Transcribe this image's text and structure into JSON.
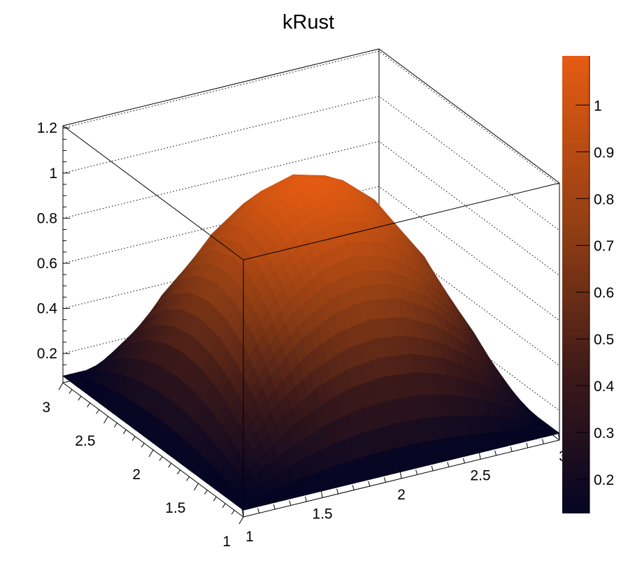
{
  "chart_data": {
    "type": "surface",
    "title": "kRust",
    "palette": "kRust",
    "palette_colors": [
      "#050523",
      "#3c1919",
      "#8c3c14",
      "#e65c12"
    ],
    "x_range": [
      1,
      3
    ],
    "y_range": [
      1,
      3
    ],
    "zlim": [
      0.07,
      1.21
    ],
    "color_range": [
      0.127,
      1.105
    ],
    "x_ticks": [
      "1",
      "1.5",
      "2",
      "2.5",
      "3"
    ],
    "y_ticks": [
      "1",
      "1.5",
      "2",
      "2.5",
      "3"
    ],
    "z_ticks": [
      "0.2",
      "0.4",
      "0.6",
      "0.8",
      "1",
      "1.2"
    ],
    "colorbar_ticks": [
      "0.2",
      "0.3",
      "0.4",
      "0.5",
      "0.6",
      "0.7",
      "0.8",
      "0.9",
      "1"
    ],
    "grid": "dotted on back walls",
    "colorbar_position": "right",
    "grid_x": [
      1,
      1.2,
      1.4,
      1.6,
      1.8,
      2,
      2.2,
      2.4,
      2.6,
      2.8,
      3
    ],
    "grid_y": [
      1,
      1.2,
      1.4,
      1.6,
      1.8,
      2,
      2.2,
      2.4,
      2.6,
      2.8,
      3
    ],
    "z_values": [
      [
        0.1,
        0.1,
        0.1,
        0.1,
        0.1,
        0.1,
        0.1,
        0.1,
        0.1,
        0.1,
        0.1
      ],
      [
        0.1,
        0.23,
        0.33,
        0.402,
        0.446,
        0.46,
        0.446,
        0.402,
        0.33,
        0.23,
        0.1
      ],
      [
        0.1,
        0.33,
        0.51,
        0.638,
        0.714,
        0.74,
        0.714,
        0.638,
        0.51,
        0.33,
        0.1
      ],
      [
        0.1,
        0.402,
        0.638,
        0.806,
        0.906,
        0.94,
        0.906,
        0.806,
        0.638,
        0.402,
        0.1
      ],
      [
        0.1,
        0.446,
        0.714,
        0.906,
        1.022,
        1.06,
        1.022,
        0.906,
        0.714,
        0.446,
        0.1
      ],
      [
        0.1,
        0.46,
        0.74,
        0.94,
        1.06,
        1.1,
        1.06,
        0.94,
        0.74,
        0.46,
        0.1
      ],
      [
        0.1,
        0.446,
        0.714,
        0.906,
        1.022,
        1.06,
        1.022,
        0.906,
        0.714,
        0.446,
        0.1
      ],
      [
        0.1,
        0.402,
        0.638,
        0.806,
        0.906,
        0.94,
        0.906,
        0.806,
        0.638,
        0.402,
        0.1
      ],
      [
        0.1,
        0.33,
        0.51,
        0.638,
        0.714,
        0.74,
        0.714,
        0.638,
        0.51,
        0.33,
        0.1
      ],
      [
        0.1,
        0.23,
        0.33,
        0.402,
        0.446,
        0.46,
        0.446,
        0.402,
        0.33,
        0.23,
        0.1
      ],
      [
        0.1,
        0.1,
        0.1,
        0.1,
        0.1,
        0.1,
        0.1,
        0.1,
        0.1,
        0.1,
        0.1
      ]
    ]
  }
}
